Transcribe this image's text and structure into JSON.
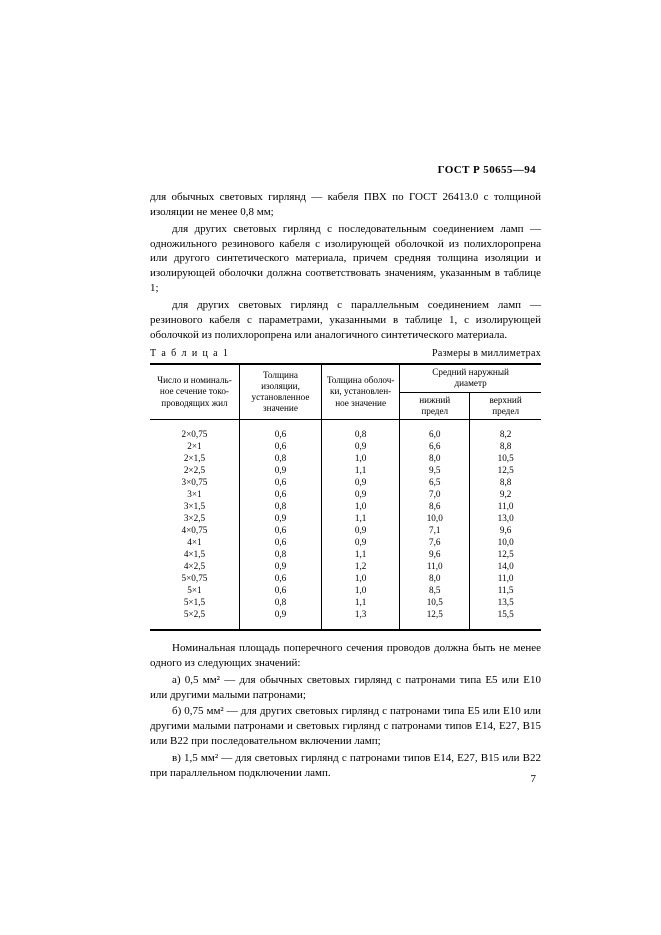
{
  "doc": {
    "header": "ГОСТ Р 50655—94",
    "page_number": "7"
  },
  "paras_top": [
    "для обычных световых гирлянд — кабеля ПВХ по ГОСТ 26413.0 с толщиной изоляции не менее 0,8 мм;",
    "для других световых гирлянд с последовательным соединением ламп — одножильного резинового кабеля с изолирующей оболочкой из полихлоропрена или другого синтетического материала, причем средняя толщина изоляции и изолирующей оболочки должна соответствовать значениям, указанным в таблице 1;",
    "для других световых гирлянд с параллельным соединением ламп — резинового кабеля с параметрами, указанными в таблице 1, с изолирующей оболочкой из полихлоропрена или аналогичного синтетического материала."
  ],
  "table": {
    "caption_left": "Т а б л и ц а 1",
    "caption_right": "Размеры в миллиметрах",
    "title_fontsize": 10,
    "cell_fontsize": 9.2,
    "border_color": "#000000",
    "columns": {
      "c0": "Число и номиналь-\nное сечение токо-\nпроводящих жил",
      "c1": "Толщина изоляции,\nустановленное\nзначение",
      "c2": "Толщина оболоч-\nки, установлен-\nное значение",
      "group": "Средний наружный\nдиаметр",
      "c3": "нижний\nпредел",
      "c4": "верхний\nпредел"
    },
    "rows": [
      {
        "c0": "2×0,75",
        "c1": "0,6",
        "c2": "0,8",
        "c3": "6,0",
        "c4": "8,2"
      },
      {
        "c0": "2×1",
        "c1": "0,6",
        "c2": "0,9",
        "c3": "6,6",
        "c4": "8,8"
      },
      {
        "c0": "2×1,5",
        "c1": "0,8",
        "c2": "1,0",
        "c3": "8,0",
        "c4": "10,5"
      },
      {
        "c0": "2×2,5",
        "c1": "0,9",
        "c2": "1,1",
        "c3": "9,5",
        "c4": "12,5"
      },
      {
        "c0": "3×0,75",
        "c1": "0,6",
        "c2": "0,9",
        "c3": "6,5",
        "c4": "8,8"
      },
      {
        "c0": "3×1",
        "c1": "0,6",
        "c2": "0,9",
        "c3": "7,0",
        "c4": "9,2"
      },
      {
        "c0": "3×1,5",
        "c1": "0,8",
        "c2": "1,0",
        "c3": "8,6",
        "c4": "11,0"
      },
      {
        "c0": "3×2,5",
        "c1": "0,9",
        "c2": "1,1",
        "c3": "10,0",
        "c4": "13,0"
      },
      {
        "c0": "4×0,75",
        "c1": "0,6",
        "c2": "0,9",
        "c3": "7,1",
        "c4": "9,6"
      },
      {
        "c0": "4×1",
        "c1": "0,6",
        "c2": "0,9",
        "c3": "7,6",
        "c4": "10,0"
      },
      {
        "c0": "4×1,5",
        "c1": "0,8",
        "c2": "1,1",
        "c3": "9,6",
        "c4": "12,5"
      },
      {
        "c0": "4×2,5",
        "c1": "0,9",
        "c2": "1,2",
        "c3": "11,0",
        "c4": "14,0"
      },
      {
        "c0": "5×0,75",
        "c1": "0,6",
        "c2": "1,0",
        "c3": "8,0",
        "c4": "11,0"
      },
      {
        "c0": "5×1",
        "c1": "0,6",
        "c2": "1,0",
        "c3": "8,5",
        "c4": "11,5"
      },
      {
        "c0": "5×1,5",
        "c1": "0,8",
        "c2": "1,1",
        "c3": "10,5",
        "c4": "13,5"
      },
      {
        "c0": "5×2,5",
        "c1": "0,9",
        "c2": "1,3",
        "c3": "12,5",
        "c4": "15,5"
      }
    ]
  },
  "paras_bottom": [
    "Номинальная площадь поперечного сечения проводов должна быть не менее одного из следующих значений:",
    "а) 0,5 мм² — для обычных световых гирлянд с патронами типа Е5 или Е10 или другими малыми патронами;",
    "б) 0,75 мм² — для других световых гирлянд с патронами типа Е5 или Е10 или другими малыми патронами и световых гирлянд с патронами типов Е14, Е27, В15 или В22 при последовательном включении ламп;",
    "в) 1,5 мм² — для световых гирлянд с патронами типов Е14, Е27, В15 или В22 при параллельном подключении ламп."
  ],
  "styling": {
    "background_color": "#ffffff",
    "text_color": "#000000",
    "body_fontsize": 11,
    "font_family": "Times New Roman"
  }
}
